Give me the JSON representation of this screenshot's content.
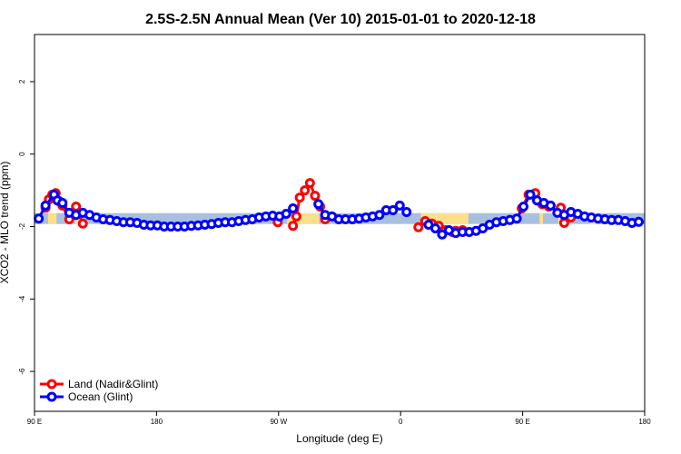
{
  "chart_data": {
    "type": "line",
    "title": "2.5S-2.5N Annual Mean (Ver 10)   2015-01-01 to 2020-12-18",
    "xlabel": "Longitude (deg E)",
    "ylabel": "XCO2 - MLO trend (ppm)",
    "xlim": [
      90,
      450
    ],
    "ylim": [
      -7.1,
      3.3
    ],
    "x_ticks": [
      {
        "value": 90,
        "label": "90 E"
      },
      {
        "value": 162,
        "label": "180"
      },
      {
        "value": 234,
        "label": "90 W"
      },
      {
        "value": 306,
        "label": "0"
      },
      {
        "value": 378,
        "label": "90 E"
      },
      {
        "value": 450,
        "label": "180"
      }
    ],
    "y_ticks": [
      {
        "value": 2,
        "label": "2"
      },
      {
        "value": 0,
        "label": "0"
      },
      {
        "value": -2,
        "label": "-2"
      },
      {
        "value": -4,
        "label": "-4"
      },
      {
        "value": -6,
        "label": "-6"
      }
    ],
    "band": {
      "y_low": -1.93,
      "y_high": -1.63,
      "ocean_color": "#a8c0e0",
      "land_color": "#ffe08a",
      "land_segments": [
        [
          98,
          103
        ],
        [
          114,
          118
        ],
        [
          239,
          258
        ],
        [
          318,
          346
        ],
        [
          373,
          374
        ],
        [
          388,
          390
        ],
        [
          399,
          403
        ],
        [
          418,
          422
        ]
      ]
    },
    "grid": false,
    "legend_position": "bottom-left",
    "series": [
      {
        "name": "Land (Nadir&Glint)",
        "color": "#ff0000",
        "points": [
          [
            96.5,
            -1.48
          ],
          [
            98.5,
            -1.25
          ],
          [
            100.5,
            -1.12
          ],
          [
            102.5,
            -1.08
          ],
          [
            104.5,
            -1.3
          ],
          [
            106.5,
            -1.42
          ],
          [
            110.5,
            -1.8
          ],
          [
            114.5,
            -1.45
          ],
          [
            118.5,
            -1.92
          ],
          [
            233.5,
            -1.88
          ],
          [
            242.5,
            -1.98
          ],
          [
            244.5,
            -1.72
          ],
          [
            246.5,
            -1.2
          ],
          [
            249.5,
            -1.0
          ],
          [
            252.5,
            -0.8
          ],
          [
            255.5,
            -1.15
          ],
          [
            258.5,
            -1.45
          ],
          [
            261.5,
            -1.8
          ],
          [
            316.5,
            -2.02
          ],
          [
            320.5,
            -1.85
          ],
          [
            324.5,
            -1.92
          ],
          [
            328.5,
            -1.98
          ],
          [
            332.5,
            -2.1
          ],
          [
            336.5,
            -2.15
          ],
          [
            338.5,
            -2.12
          ],
          [
            342.5,
            -2.1
          ],
          [
            377.5,
            -1.5
          ],
          [
            381.5,
            -1.12
          ],
          [
            385.5,
            -1.08
          ],
          [
            389.5,
            -1.38
          ],
          [
            393.5,
            -1.45
          ],
          [
            400.5,
            -1.48
          ],
          [
            402.5,
            -1.9
          ],
          [
            406.5,
            -1.75
          ]
        ]
      },
      {
        "name": "Ocean (Glint)",
        "color": "#0000ff",
        "points": [
          [
            92.5,
            -1.78
          ],
          [
            96.5,
            -1.42
          ],
          [
            101.5,
            -1.12
          ],
          [
            103.5,
            -1.28
          ],
          [
            106.5,
            -1.35
          ],
          [
            110.5,
            -1.62
          ],
          [
            114.5,
            -1.68
          ],
          [
            118.5,
            -1.62
          ],
          [
            122.5,
            -1.68
          ],
          [
            126.5,
            -1.75
          ],
          [
            130.5,
            -1.8
          ],
          [
            134.5,
            -1.82
          ],
          [
            138.5,
            -1.85
          ],
          [
            142.5,
            -1.88
          ],
          [
            146.5,
            -1.88
          ],
          [
            150.5,
            -1.9
          ],
          [
            154.5,
            -1.95
          ],
          [
            158.5,
            -1.97
          ],
          [
            162.5,
            -1.97
          ],
          [
            166.5,
            -2.0
          ],
          [
            170.5,
            -2.0
          ],
          [
            174.5,
            -2.0
          ],
          [
            178.5,
            -2.0
          ],
          [
            182.5,
            -1.98
          ],
          [
            186.5,
            -1.97
          ],
          [
            190.5,
            -1.95
          ],
          [
            194.5,
            -1.93
          ],
          [
            198.5,
            -1.9
          ],
          [
            202.5,
            -1.88
          ],
          [
            206.5,
            -1.88
          ],
          [
            210.5,
            -1.85
          ],
          [
            214.5,
            -1.82
          ],
          [
            218.5,
            -1.8
          ],
          [
            222.5,
            -1.75
          ],
          [
            226.5,
            -1.72
          ],
          [
            230.5,
            -1.7
          ],
          [
            234.5,
            -1.72
          ],
          [
            238.5,
            -1.65
          ],
          [
            242.5,
            -1.5
          ],
          [
            257.5,
            -1.38
          ],
          [
            261.5,
            -1.68
          ],
          [
            265.5,
            -1.72
          ],
          [
            269.5,
            -1.8
          ],
          [
            273.5,
            -1.8
          ],
          [
            277.5,
            -1.8
          ],
          [
            281.5,
            -1.78
          ],
          [
            285.5,
            -1.75
          ],
          [
            289.5,
            -1.72
          ],
          [
            293.5,
            -1.68
          ],
          [
            297.5,
            -1.55
          ],
          [
            301.5,
            -1.55
          ],
          [
            305.5,
            -1.42
          ],
          [
            309.5,
            -1.6
          ],
          [
            322.5,
            -1.95
          ],
          [
            326.5,
            -2.05
          ],
          [
            330.5,
            -2.22
          ],
          [
            334.5,
            -2.1
          ],
          [
            338.5,
            -2.18
          ],
          [
            342.5,
            -2.15
          ],
          [
            346.5,
            -2.15
          ],
          [
            350.5,
            -2.12
          ],
          [
            354.5,
            -2.05
          ],
          [
            358.5,
            -1.95
          ],
          [
            362.5,
            -1.88
          ],
          [
            366.5,
            -1.85
          ],
          [
            370.5,
            -1.82
          ],
          [
            374.5,
            -1.78
          ],
          [
            378.5,
            -1.45
          ],
          [
            382.5,
            -1.12
          ],
          [
            386.5,
            -1.28
          ],
          [
            390.5,
            -1.35
          ],
          [
            394.5,
            -1.42
          ],
          [
            398.5,
            -1.62
          ],
          [
            402.5,
            -1.68
          ],
          [
            406.5,
            -1.6
          ],
          [
            410.5,
            -1.65
          ],
          [
            414.5,
            -1.72
          ],
          [
            418.5,
            -1.75
          ],
          [
            422.5,
            -1.78
          ],
          [
            426.5,
            -1.8
          ],
          [
            430.5,
            -1.82
          ],
          [
            434.5,
            -1.82
          ],
          [
            438.5,
            -1.85
          ],
          [
            442.5,
            -1.9
          ],
          [
            446.5,
            -1.87
          ]
        ]
      }
    ]
  }
}
